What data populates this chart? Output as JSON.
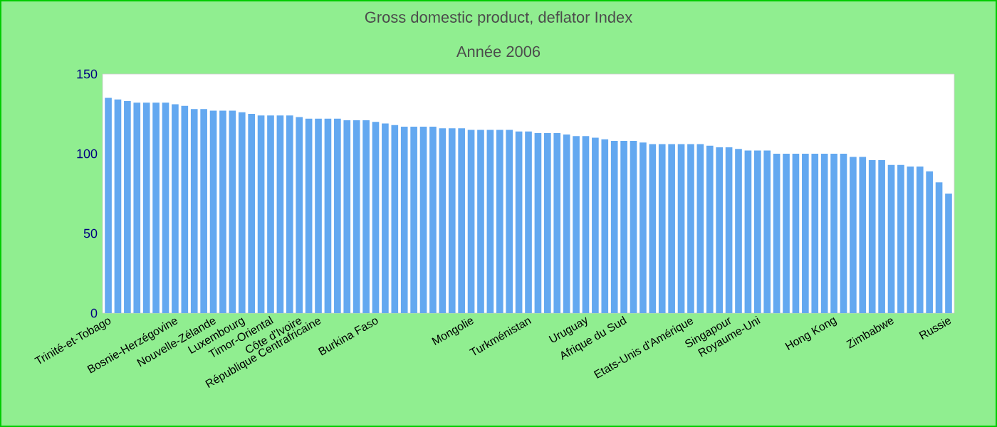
{
  "chart_data": {
    "type": "bar",
    "title": "Gross domestic product, deflator  Index",
    "subtitle": "Année 2006",
    "categories": [
      "Trinité-et-Tobago",
      null,
      null,
      null,
      null,
      null,
      null,
      "Bosnie-Herzégovine",
      null,
      null,
      null,
      "Nouvelle-Zélande",
      null,
      null,
      "Luxembourg",
      null,
      null,
      "Timor-Oriental",
      null,
      null,
      "Côte d'Ivoire",
      null,
      "République Centrafricaine",
      null,
      null,
      null,
      null,
      null,
      "Burkina Faso",
      null,
      null,
      null,
      null,
      null,
      null,
      null,
      null,
      null,
      "Mongolie",
      null,
      null,
      null,
      null,
      null,
      "Turkménistan",
      null,
      null,
      null,
      null,
      null,
      "Uruguay",
      null,
      null,
      null,
      "Afrique du Sud",
      null,
      null,
      null,
      null,
      null,
      null,
      "Etats-Unis d'Amérique",
      null,
      null,
      null,
      "Singapour",
      null,
      null,
      "Royaume-Uni",
      null,
      null,
      null,
      null,
      null,
      null,
      null,
      "Hong Kong",
      null,
      null,
      null,
      null,
      null,
      "Zimbabwe",
      null,
      null,
      null,
      null,
      null,
      "Russie"
    ],
    "values": [
      135,
      134,
      133,
      132,
      132,
      132,
      132,
      131,
      130,
      128,
      128,
      127,
      127,
      127,
      126,
      125,
      124,
      124,
      124,
      124,
      123,
      122,
      122,
      122,
      122,
      121,
      121,
      121,
      120,
      119,
      118,
      117,
      117,
      117,
      117,
      116,
      116,
      116,
      115,
      115,
      115,
      115,
      115,
      114,
      114,
      113,
      113,
      113,
      112,
      111,
      111,
      110,
      109,
      108,
      108,
      108,
      107,
      106,
      106,
      106,
      106,
      106,
      106,
      105,
      104,
      104,
      103,
      102,
      102,
      102,
      100,
      100,
      100,
      100,
      100,
      100,
      100,
      100,
      98,
      98,
      96,
      96,
      93,
      93,
      92,
      92,
      89,
      82,
      75
    ],
    "color": "#63a8f0",
    "ylim": [
      0,
      150
    ],
    "yticks": [
      0,
      50,
      100,
      150
    ]
  }
}
